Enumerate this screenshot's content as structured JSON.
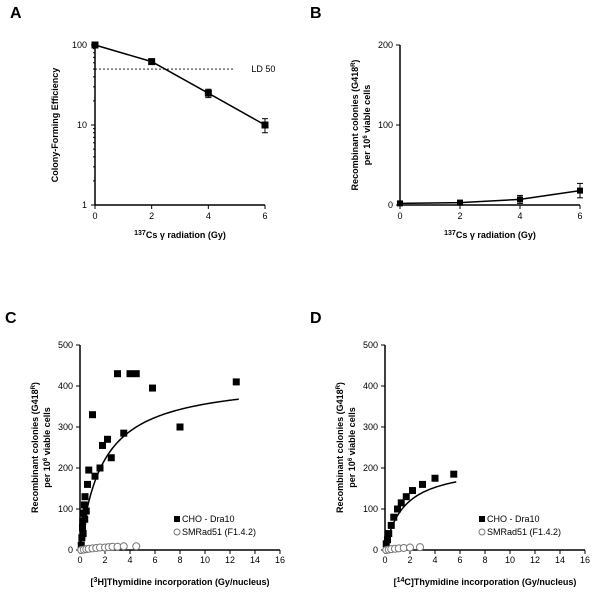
{
  "panels": {
    "A": "A",
    "B": "B",
    "C": "C",
    "D": "D"
  },
  "A": {
    "type": "line-log",
    "xlabel_prefix": "137",
    "xlabel_mid": "Cs γ radiation (Gy)",
    "ylabel": "Colony-Forming Efficiency",
    "xlim": [
      0,
      6
    ],
    "xticks": [
      0,
      2,
      4,
      6
    ],
    "ylim_log": [
      1,
      100
    ],
    "yticks_log": [
      1,
      10,
      100
    ],
    "ld50_label": "LD 50",
    "ld50_y": 50,
    "points": [
      {
        "x": 0,
        "y": 100,
        "err": 0
      },
      {
        "x": 2,
        "y": 62,
        "err": 4
      },
      {
        "x": 4,
        "y": 25,
        "err": 3
      },
      {
        "x": 6,
        "y": 10,
        "err": 2
      }
    ],
    "marker_size": 3.5,
    "colors": {
      "line": "#000000",
      "marker": "#000000",
      "bg": "#ffffff"
    }
  },
  "B": {
    "type": "line",
    "xlabel_prefix": "137",
    "xlabel_mid": "Cs γ radiation (Gy)",
    "ylabel_line1": "Recombinant colonies (G418",
    "ylabel_sup": "R",
    "ylabel_line1_end": ")",
    "ylabel_line2": "per 10",
    "ylabel_line2_sup": "6",
    "ylabel_line2_end": " viable cells",
    "xlim": [
      0,
      6
    ],
    "xticks": [
      0,
      2,
      4,
      6
    ],
    "ylim": [
      0,
      200
    ],
    "yticks": [
      0,
      100,
      200
    ],
    "points": [
      {
        "x": 0,
        "y": 2,
        "err": 1
      },
      {
        "x": 2,
        "y": 3,
        "err": 2
      },
      {
        "x": 4,
        "y": 7,
        "err": 5
      },
      {
        "x": 6,
        "y": 18,
        "err": 9
      }
    ],
    "marker_size": 3,
    "colors": {
      "line": "#000000",
      "marker": "#000000"
    }
  },
  "C": {
    "type": "scatter-fit",
    "xlabel_prefix": "3",
    "xlabel": "H]Thymidine incorporation (Gy/nucleus)",
    "ylabel_line1": "Recombinant colonies (G418",
    "ylabel_sup": "R",
    "ylabel_line1_end": ")",
    "ylabel_line2": "per 10",
    "ylabel_line2_sup": "6",
    "ylabel_line2_end": " viable cells",
    "xlim": [
      0,
      16
    ],
    "xticks": [
      0,
      2,
      4,
      6,
      8,
      10,
      12,
      14,
      16
    ],
    "ylim": [
      0,
      500
    ],
    "yticks": [
      0,
      100,
      200,
      300,
      400,
      500
    ],
    "legend": [
      {
        "label": "CHO - Dra10",
        "marker": "square-filled"
      },
      {
        "label": "SMRad51 (F1.4.2)",
        "marker": "circle-open"
      }
    ],
    "series_filled": [
      {
        "x": 0.1,
        "y": 12
      },
      {
        "x": 0.15,
        "y": 30
      },
      {
        "x": 0.2,
        "y": 55
      },
      {
        "x": 0.22,
        "y": 70
      },
      {
        "x": 0.25,
        "y": 40
      },
      {
        "x": 0.3,
        "y": 90
      },
      {
        "x": 0.35,
        "y": 110
      },
      {
        "x": 0.38,
        "y": 75
      },
      {
        "x": 0.4,
        "y": 130
      },
      {
        "x": 0.5,
        "y": 95
      },
      {
        "x": 0.6,
        "y": 160
      },
      {
        "x": 0.7,
        "y": 195
      },
      {
        "x": 1.0,
        "y": 330
      },
      {
        "x": 1.2,
        "y": 180
      },
      {
        "x": 1.6,
        "y": 200
      },
      {
        "x": 1.8,
        "y": 255
      },
      {
        "x": 2.2,
        "y": 270
      },
      {
        "x": 2.5,
        "y": 225
      },
      {
        "x": 3.0,
        "y": 430
      },
      {
        "x": 3.5,
        "y": 285
      },
      {
        "x": 4.0,
        "y": 430
      },
      {
        "x": 4.5,
        "y": 430
      },
      {
        "x": 5.8,
        "y": 395
      },
      {
        "x": 8.0,
        "y": 300
      },
      {
        "x": 12.5,
        "y": 410
      }
    ],
    "series_open": [
      {
        "x": 0.1,
        "y": 0
      },
      {
        "x": 0.3,
        "y": 1
      },
      {
        "x": 0.5,
        "y": 2
      },
      {
        "x": 0.7,
        "y": 3
      },
      {
        "x": 1.0,
        "y": 4
      },
      {
        "x": 1.3,
        "y": 5
      },
      {
        "x": 1.6,
        "y": 6
      },
      {
        "x": 2.0,
        "y": 6
      },
      {
        "x": 2.3,
        "y": 7
      },
      {
        "x": 2.6,
        "y": 8
      },
      {
        "x": 3.0,
        "y": 8
      },
      {
        "x": 3.5,
        "y": 9
      },
      {
        "x": 4.5,
        "y": 9
      }
    ],
    "fit_ymax": 420,
    "fit_k": 1.8,
    "marker_size": 3.5
  },
  "D": {
    "type": "scatter-fit",
    "xlabel_prefix": "14",
    "xlabel": "C]Thymidine incorporation (Gy/nucleus)",
    "ylabel_line1": "Recombinant colonies (G418",
    "ylabel_sup": "R",
    "ylabel_line1_end": ")",
    "ylabel_line2": "per 10",
    "ylabel_line2_sup": "6",
    "ylabel_line2_end": " viable cells",
    "xlim": [
      0,
      16
    ],
    "xticks": [
      0,
      2,
      4,
      6,
      8,
      10,
      12,
      14,
      16
    ],
    "ylim": [
      0,
      500
    ],
    "yticks": [
      0,
      100,
      200,
      300,
      400,
      500
    ],
    "legend": [
      {
        "label": "CHO - Dra10",
        "marker": "square-filled"
      },
      {
        "label": "SMRad51 (F1.4.2)",
        "marker": "circle-open"
      }
    ],
    "series_filled": [
      {
        "x": 0.1,
        "y": 15
      },
      {
        "x": 0.2,
        "y": 25
      },
      {
        "x": 0.3,
        "y": 40
      },
      {
        "x": 0.5,
        "y": 60
      },
      {
        "x": 0.7,
        "y": 80
      },
      {
        "x": 1.0,
        "y": 100
      },
      {
        "x": 1.3,
        "y": 115
      },
      {
        "x": 1.7,
        "y": 130
      },
      {
        "x": 2.2,
        "y": 145
      },
      {
        "x": 3.0,
        "y": 160
      },
      {
        "x": 4.0,
        "y": 175
      },
      {
        "x": 5.5,
        "y": 185
      }
    ],
    "series_open": [
      {
        "x": 0.1,
        "y": 0
      },
      {
        "x": 0.3,
        "y": 1
      },
      {
        "x": 0.5,
        "y": 2
      },
      {
        "x": 0.8,
        "y": 3
      },
      {
        "x": 1.1,
        "y": 4
      },
      {
        "x": 1.5,
        "y": 5
      },
      {
        "x": 2.0,
        "y": 6
      },
      {
        "x": 2.8,
        "y": 7
      }
    ],
    "fit_ymax": 210,
    "fit_k": 1.5,
    "marker_size": 3.5
  }
}
